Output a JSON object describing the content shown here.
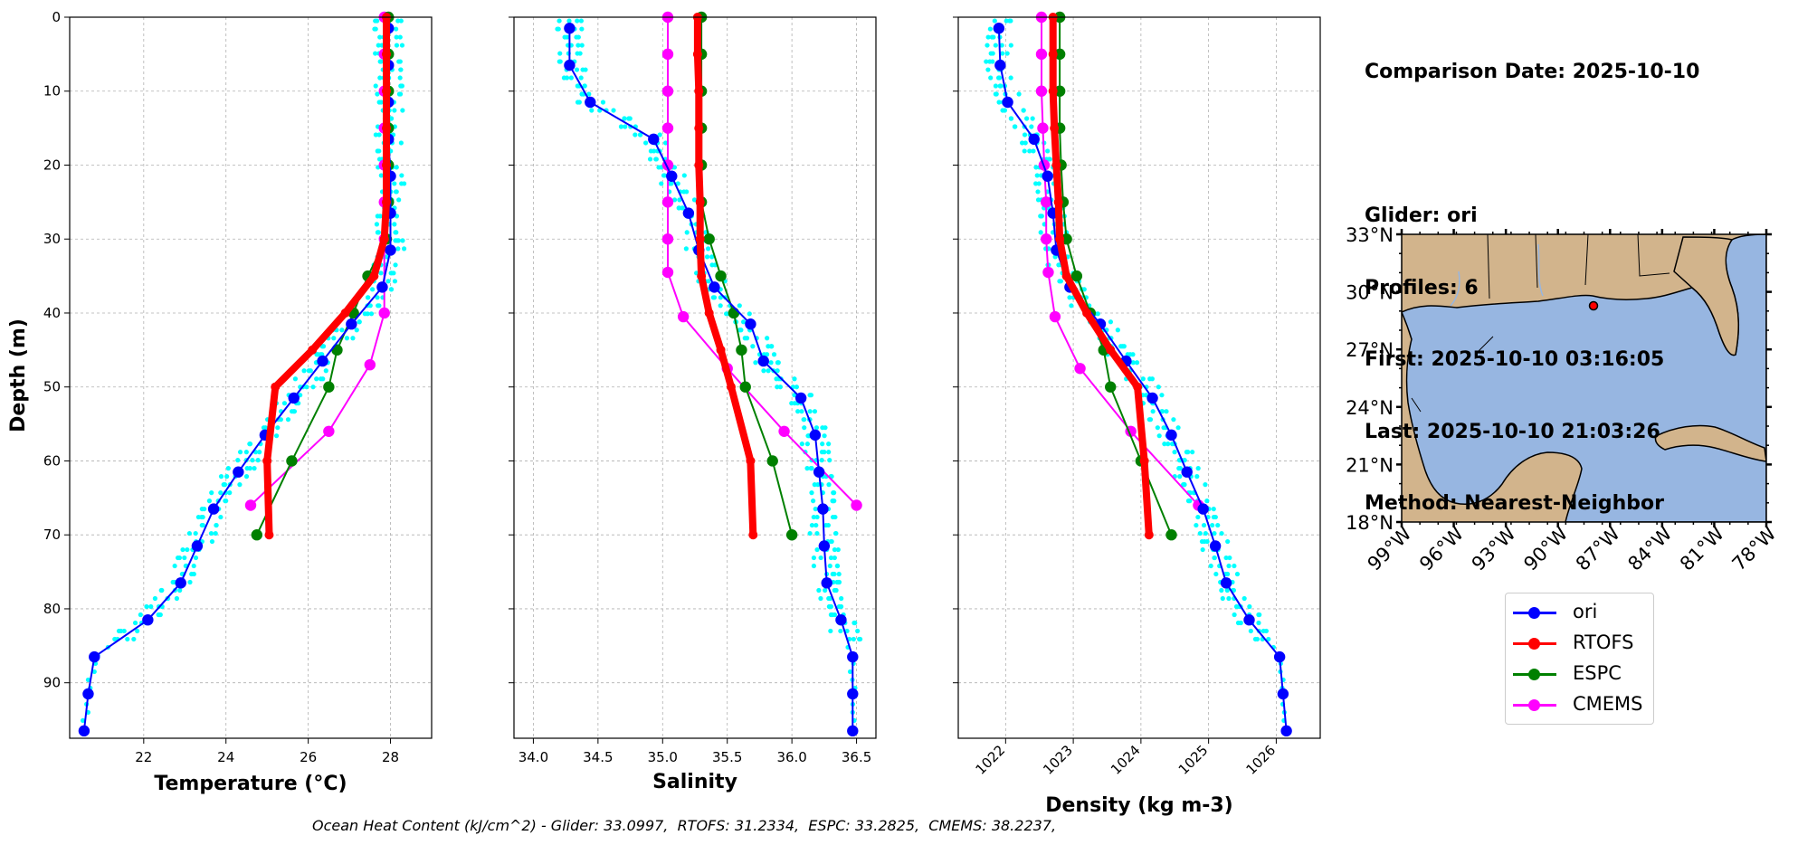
{
  "info": {
    "comparison_date": "Comparison Date: 2025-10-10",
    "glider": "Glider: ori",
    "profiles": "Profiles: 6",
    "first": "First: 2025-10-10 03:16:05",
    "last": "Last: 2025-10-10 21:03:26",
    "method": "Method: Nearest-Neighbor"
  },
  "footer": "Ocean Heat Content (kJ/cm^2) - Glider: 33.0997,  RTOFS: 31.2334,  ESPC: 33.2825,  CMEMS: 38.2237,",
  "colors": {
    "ori": "#0000ff",
    "rtofs": "#ff0000",
    "espc": "#008000",
    "cmems": "#ff00ff",
    "raw": "#00ffff",
    "land": "#d2b48c",
    "ocean": "#97b6e1"
  },
  "legend": [
    {
      "name": "ori",
      "color": "#0000ff"
    },
    {
      "name": "RTOFS",
      "color": "#ff0000"
    },
    {
      "name": "ESPC",
      "color": "#008000"
    },
    {
      "name": "CMEMS",
      "color": "#ff00ff"
    }
  ],
  "map": {
    "lat_labels": [
      "33°N",
      "30°N",
      "27°N",
      "24°N",
      "21°N",
      "18°N"
    ],
    "lon_labels": [
      "99°W",
      "96°W",
      "93°W",
      "90°W",
      "87°W",
      "84°W",
      "81°W",
      "78°W"
    ],
    "extent": {
      "lon": [
        -98,
        -78
      ],
      "lat": [
        18,
        33
      ]
    },
    "glider_position": {
      "lon": -88.5,
      "lat": 29.4
    }
  },
  "chart_data": [
    {
      "type": "line",
      "xlabel": "Temperature (°C)",
      "ylabel": "Depth (m)",
      "xlim": [
        20.2,
        29.0
      ],
      "ylim": [
        97.5,
        0
      ],
      "xticks": [
        22,
        24,
        26,
        28
      ],
      "yticks": [
        0,
        10,
        20,
        30,
        40,
        50,
        60,
        70,
        80,
        90
      ],
      "grid": true,
      "series": [
        {
          "name": "ori",
          "depth": [
            1.5,
            6.5,
            11.5,
            16.5,
            21.5,
            26.5,
            31.5,
            36.5,
            41.5,
            46.5,
            51.5,
            56.5,
            61.5,
            66.5,
            71.5,
            76.5,
            81.5,
            86.5,
            91.5,
            96.5
          ],
          "values": [
            27.95,
            27.95,
            27.95,
            27.95,
            28.0,
            28.0,
            28.0,
            27.8,
            27.05,
            26.35,
            25.65,
            24.95,
            24.3,
            23.7,
            23.3,
            22.9,
            22.1,
            20.8,
            20.65,
            20.55
          ]
        },
        {
          "name": "RTOFS",
          "depth": [
            0,
            5,
            10,
            15,
            20,
            25,
            30,
            35,
            40,
            45,
            50,
            60,
            70
          ],
          "values": [
            27.9,
            27.9,
            27.9,
            27.9,
            27.9,
            27.9,
            27.85,
            27.6,
            26.9,
            26.1,
            25.2,
            25.0,
            25.05
          ]
        },
        {
          "name": "ESPC",
          "depth": [
            0,
            5,
            10,
            15,
            20,
            25,
            30,
            35,
            40,
            45,
            50,
            60,
            70
          ],
          "values": [
            27.95,
            27.95,
            27.95,
            27.95,
            27.95,
            27.95,
            27.9,
            27.45,
            27.1,
            26.7,
            26.5,
            25.6,
            24.75
          ]
        },
        {
          "name": "CMEMS",
          "depth": [
            0,
            5,
            10,
            15,
            20,
            25,
            30,
            40,
            47,
            56,
            66
          ],
          "values": [
            27.85,
            27.85,
            27.85,
            27.85,
            27.85,
            27.85,
            27.85,
            27.85,
            27.5,
            26.5,
            24.6
          ]
        }
      ]
    },
    {
      "type": "line",
      "xlabel": "Salinity",
      "ylabel": "",
      "xlim": [
        33.85,
        36.65
      ],
      "ylim": [
        97.5,
        0
      ],
      "xticks": [
        34.0,
        34.5,
        35.0,
        35.5,
        36.0,
        36.5
      ],
      "yticks": [
        0,
        10,
        20,
        30,
        40,
        50,
        60,
        70,
        80,
        90
      ],
      "grid": true,
      "series": [
        {
          "name": "ori",
          "depth": [
            1.5,
            6.5,
            11.5,
            16.5,
            21.5,
            26.5,
            31.5,
            36.5,
            41.5,
            46.5,
            51.5,
            56.5,
            61.5,
            66.5,
            71.5,
            76.5,
            81.5,
            86.5,
            91.5,
            96.5
          ],
          "values": [
            34.28,
            34.28,
            34.44,
            34.93,
            35.07,
            35.2,
            35.28,
            35.4,
            35.68,
            35.78,
            36.07,
            36.18,
            36.21,
            36.24,
            36.25,
            36.27,
            36.38,
            36.47,
            36.47,
            36.47
          ]
        },
        {
          "name": "RTOFS",
          "depth": [
            0,
            5,
            10,
            15,
            20,
            25,
            30,
            35,
            40,
            45,
            50,
            60,
            70
          ],
          "values": [
            35.27,
            35.27,
            35.28,
            35.28,
            35.28,
            35.29,
            35.29,
            35.3,
            35.36,
            35.45,
            35.53,
            35.68,
            35.7
          ]
        },
        {
          "name": "ESPC",
          "depth": [
            0,
            5,
            10,
            15,
            20,
            25,
            30,
            35,
            40,
            45,
            50,
            60,
            70
          ],
          "values": [
            35.3,
            35.3,
            35.3,
            35.3,
            35.3,
            35.3,
            35.36,
            35.45,
            35.55,
            35.61,
            35.64,
            35.85,
            36.0
          ]
        },
        {
          "name": "CMEMS",
          "depth": [
            0,
            5,
            10,
            15,
            20,
            25,
            30,
            34.5,
            40.5,
            47.5,
            56,
            66
          ],
          "values": [
            35.04,
            35.04,
            35.04,
            35.04,
            35.04,
            35.04,
            35.04,
            35.04,
            35.16,
            35.5,
            35.94,
            36.5
          ]
        }
      ]
    },
    {
      "type": "line",
      "xlabel": "Density (kg m-3)",
      "ylabel": "",
      "xlim": [
        1021.3,
        1026.65
      ],
      "ylim": [
        97.5,
        0
      ],
      "xticks": [
        1022,
        1023,
        1024,
        1025,
        1026
      ],
      "yticks": [
        0,
        10,
        20,
        30,
        40,
        50,
        60,
        70,
        80,
        90
      ],
      "grid": true,
      "series": [
        {
          "name": "ori",
          "depth": [
            1.5,
            6.5,
            11.5,
            16.5,
            21.5,
            26.5,
            31.5,
            36.5,
            41.5,
            46.5,
            51.5,
            56.5,
            61.5,
            66.5,
            71.5,
            76.5,
            81.5,
            86.5,
            91.5,
            96.5
          ],
          "values": [
            1021.9,
            1021.92,
            1022.03,
            1022.42,
            1022.62,
            1022.7,
            1022.75,
            1022.95,
            1023.4,
            1023.78,
            1024.17,
            1024.45,
            1024.68,
            1024.92,
            1025.1,
            1025.26,
            1025.6,
            1026.05,
            1026.1,
            1026.15
          ]
        },
        {
          "name": "RTOFS",
          "depth": [
            0,
            5,
            10,
            15,
            20,
            25,
            30,
            35,
            40,
            45,
            50,
            60,
            70
          ],
          "values": [
            1022.7,
            1022.7,
            1022.7,
            1022.72,
            1022.75,
            1022.78,
            1022.8,
            1022.9,
            1023.2,
            1023.55,
            1023.95,
            1024.05,
            1024.12
          ]
        },
        {
          "name": "ESPC",
          "depth": [
            0,
            5,
            10,
            15,
            20,
            25,
            30,
            35,
            40,
            45,
            50,
            60,
            70
          ],
          "values": [
            1022.8,
            1022.8,
            1022.8,
            1022.8,
            1022.82,
            1022.85,
            1022.9,
            1023.05,
            1023.25,
            1023.45,
            1023.55,
            1024.0,
            1024.45
          ]
        },
        {
          "name": "CMEMS",
          "depth": [
            0,
            5,
            10,
            15,
            20,
            25,
            30,
            34.5,
            40.5,
            47.5,
            56,
            66
          ],
          "values": [
            1022.53,
            1022.53,
            1022.53,
            1022.55,
            1022.57,
            1022.6,
            1022.6,
            1022.63,
            1022.73,
            1023.1,
            1023.85,
            1024.85
          ]
        }
      ]
    }
  ]
}
